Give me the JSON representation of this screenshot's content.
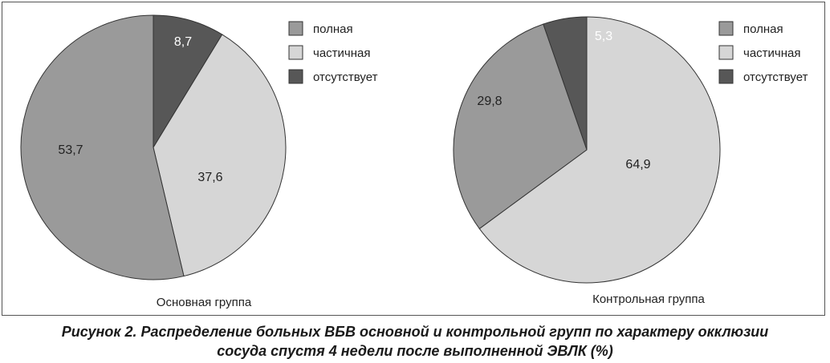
{
  "chart_data": [
    {
      "type": "pie",
      "title": "Основная группа",
      "categories": [
        "полная",
        "частичная",
        "отсутствует"
      ],
      "values": [
        53.7,
        37.6,
        8.7
      ],
      "value_labels": [
        "53,7",
        "37,6",
        "8,7"
      ],
      "colors": [
        "#9a9a9a",
        "#d6d6d6",
        "#575757"
      ],
      "legend": "top-right"
    },
    {
      "type": "pie",
      "title": "Контрольная группа",
      "categories": [
        "полная",
        "частичная",
        "отсутствует"
      ],
      "values": [
        29.8,
        64.9,
        5.3
      ],
      "value_labels": [
        "29,8",
        "64,9",
        "5,3"
      ],
      "colors": [
        "#9a9a9a",
        "#d6d6d6",
        "#575757"
      ],
      "legend": "top-right"
    }
  ],
  "caption": {
    "line1": "Рисунок 2. Распределение больных ВБВ основной и контрольной групп по характеру окклюзии",
    "line2": "сосуда спустя 4 недели после выполненной ЭВЛК (%)"
  }
}
